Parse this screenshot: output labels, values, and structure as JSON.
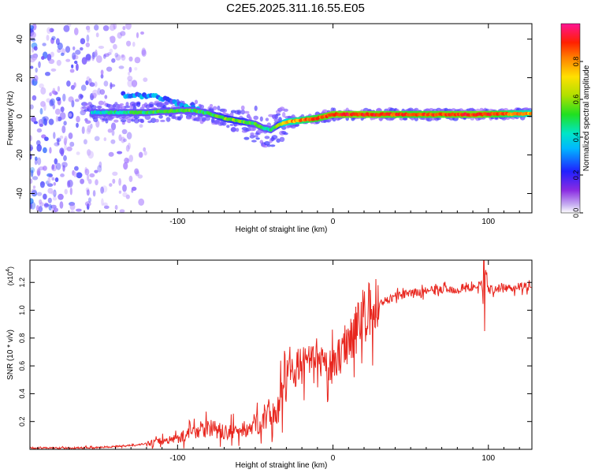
{
  "title": "C2E5.2025.311.16.55.E05",
  "chart_data": [
    {
      "type": "heatmap",
      "title": "C2E5.2025.311.16.55.E05",
      "xlabel": "Height of straight line (km)",
      "ylabel": "Frequency (Hz)",
      "xlim": [
        -195,
        128
      ],
      "ylim": [
        -50,
        48
      ],
      "xticks": [
        -100,
        0,
        100
      ],
      "yticks": [
        -40,
        -20,
        0,
        20,
        40
      ],
      "colorbar": {
        "label": "Normalized spectral amplitude",
        "range": [
          0,
          1
        ],
        "ticks": [
          0.0,
          0.2,
          0.4,
          0.6,
          0.8
        ],
        "tick_labels": [
          "0.0",
          "0.2",
          "0.4",
          "0.6",
          "0.8"
        ]
      },
      "noise_region_x": [
        -195,
        -120
      ],
      "ridge": {
        "x": [
          -155,
          -145,
          -130,
          -120,
          -110,
          -100,
          -90,
          -80,
          -70,
          -60,
          -50,
          -45,
          -40,
          -35,
          -30,
          -20,
          -10,
          0,
          20,
          50,
          95,
          128
        ],
        "freq": [
          2,
          2,
          2,
          2,
          2.5,
          3,
          3,
          1.5,
          -1,
          -2.5,
          -4,
          -6,
          -7,
          -4.5,
          -3,
          -2,
          -1,
          1,
          1,
          1,
          1,
          1.5
        ],
        "amplitude": [
          0.35,
          0.4,
          0.45,
          0.45,
          0.5,
          0.5,
          0.5,
          0.5,
          0.55,
          0.55,
          0.5,
          0.45,
          0.45,
          0.55,
          0.75,
          0.8,
          0.85,
          0.9,
          0.9,
          0.85,
          0.9,
          0.75
        ]
      },
      "upper_branch": {
        "x": [
          -135,
          -125,
          -115,
          -105,
          -95,
          -85
        ],
        "freq": [
          11,
          11,
          10,
          8,
          5,
          3
        ]
      }
    },
    {
      "type": "line",
      "xlabel": "Height of straight line (km)",
      "ylabel": "SNR (10 * v/v)",
      "y_scale_note": "(x10",
      "y_scale_exponent": "4",
      "xlim": [
        -195,
        128
      ],
      "ylim": [
        0,
        1.36
      ],
      "xticks": [
        -100,
        0,
        100
      ],
      "yticks": [
        0.2,
        0.4,
        0.6,
        0.8,
        1.0,
        1.2
      ],
      "ytick_labels": [
        "0.2",
        "0.4",
        "0.6",
        "0.8",
        "1.0",
        "1.2"
      ],
      "color": "#e8261e",
      "series": [
        {
          "name": "SNR",
          "x": [
            -195,
            -180,
            -165,
            -150,
            -140,
            -130,
            -120,
            -110,
            -100,
            -95,
            -90,
            -85,
            -80,
            -75,
            -70,
            -65,
            -60,
            -55,
            -50,
            -45,
            -40,
            -35,
            -32,
            -30,
            -25,
            -20,
            -15,
            -10,
            -5,
            0,
            5,
            10,
            15,
            20,
            25,
            30,
            40,
            50,
            60,
            70,
            80,
            90,
            96,
            97,
            98,
            100,
            110,
            120,
            128
          ],
          "values": [
            0.01,
            0.01,
            0.01,
            0.015,
            0.02,
            0.03,
            0.04,
            0.06,
            0.08,
            0.1,
            0.13,
            0.15,
            0.16,
            0.14,
            0.12,
            0.13,
            0.13,
            0.15,
            0.18,
            0.22,
            0.26,
            0.3,
            0.45,
            0.55,
            0.58,
            0.6,
            0.62,
            0.6,
            0.6,
            0.58,
            0.7,
            0.8,
            0.88,
            0.95,
            1.0,
            1.05,
            1.1,
            1.12,
            1.14,
            1.15,
            1.15,
            1.16,
            1.2,
            0.88,
            1.28,
            1.15,
            1.16,
            1.17,
            1.17
          ]
        }
      ]
    }
  ]
}
